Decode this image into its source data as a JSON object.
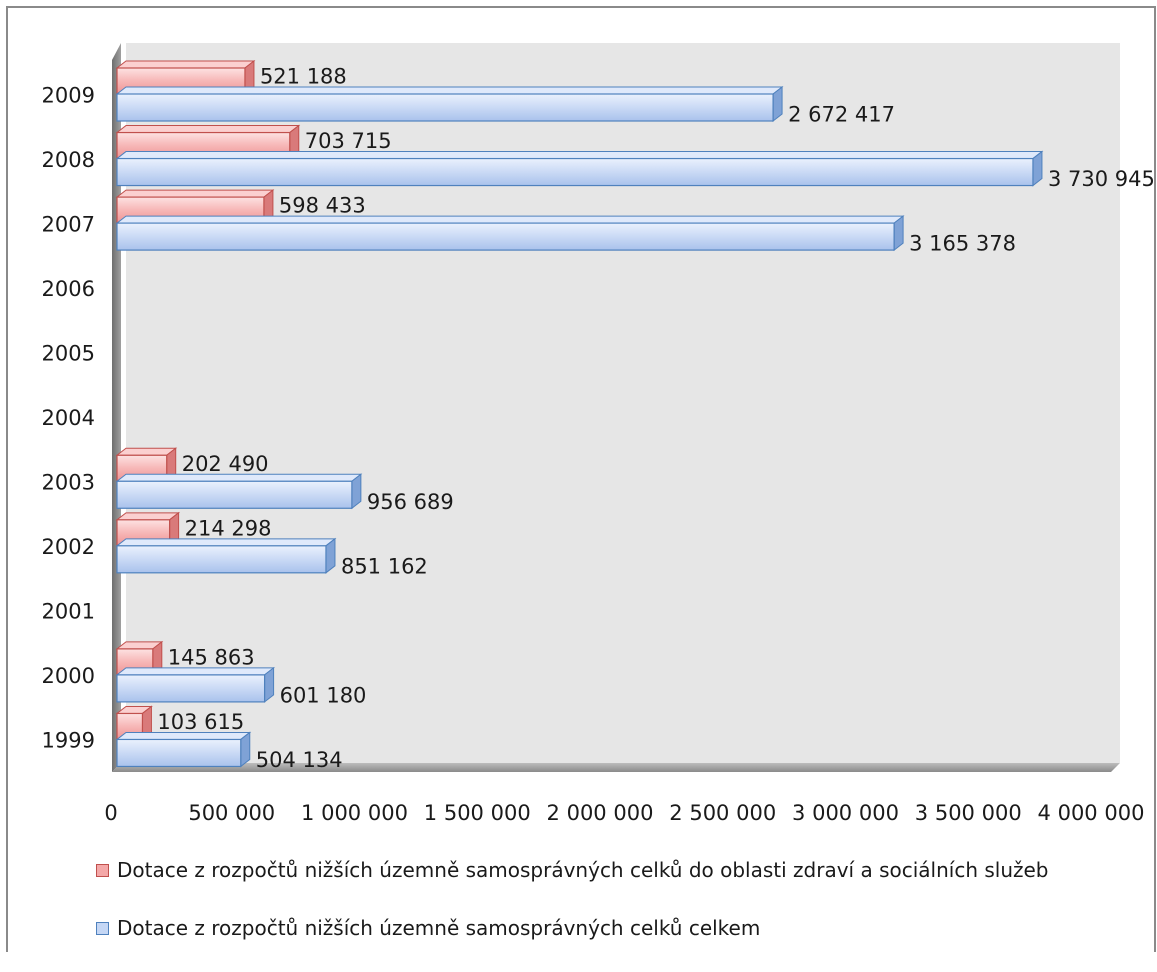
{
  "chart_data": {
    "type": "bar",
    "orientation": "horizontal",
    "categories": [
      "1999",
      "2000",
      "2001",
      "2002",
      "2003",
      "2004",
      "2005",
      "2006",
      "2007",
      "2008",
      "2009"
    ],
    "series": [
      {
        "name": "Dotace z rozpočtů nižších územně samosprávných celků do oblasti zdraví a sociálních služeb",
        "color": "#f4a8a8",
        "values": [
          103615,
          145863,
          null,
          214298,
          202490,
          null,
          null,
          null,
          598433,
          703715,
          521188
        ],
        "labels": [
          "103 615",
          "145 863",
          "",
          "214 298",
          "202 490",
          "",
          "",
          "",
          "598 433",
          "703 715",
          "521 188"
        ]
      },
      {
        "name": "Dotace z rozpočtů nižších územně samosprávných celků celkem",
        "color": "#c5d7f5",
        "values": [
          504134,
          601180,
          null,
          851162,
          956689,
          null,
          null,
          null,
          3165378,
          3730945,
          2672417
        ],
        "labels": [
          "504 134",
          "601 180",
          "",
          "851 162",
          "956 689",
          "",
          "",
          "",
          "3 165 378",
          "3 730 945",
          "2 672 417"
        ]
      }
    ],
    "x_ticks": [
      0,
      500000,
      1000000,
      1500000,
      2000000,
      2500000,
      3000000,
      3500000,
      4000000
    ],
    "x_tick_labels": [
      "0",
      "500 000",
      "1 000 000",
      "1 500 000",
      "2 000 000",
      "2 500 000",
      "3 000 000",
      "3 500 000",
      "4 000 000"
    ],
    "xlim": [
      0,
      4000000
    ],
    "legend_position": "bottom",
    "grid": false
  },
  "colors": {
    "plot_background": "#e6e6e6",
    "pink_fill": "#f4a8a8",
    "pink_border": "#c0504d",
    "blue_fill": "#c5d7f5",
    "blue_border": "#4f81bd"
  }
}
